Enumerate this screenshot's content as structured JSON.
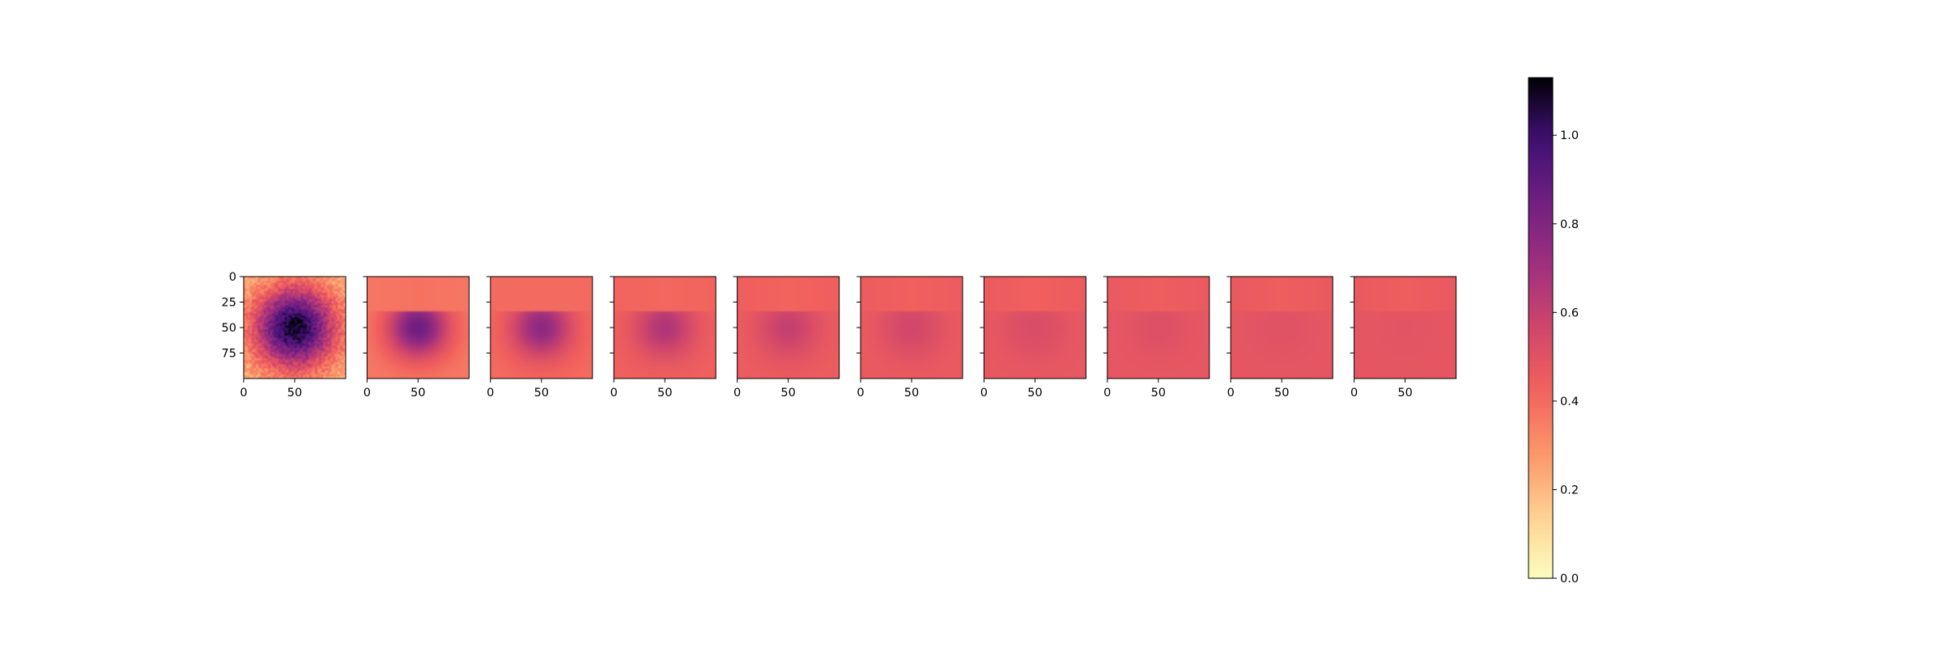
{
  "chart_data": {
    "type": "heatmap",
    "title": "",
    "colormap": "magma_r",
    "panels": [
      {
        "panel": 1,
        "center_value": 1.1,
        "edge_value": 0.18,
        "top_band_value": null,
        "noise": true
      },
      {
        "panel": 2,
        "center_value": 0.86,
        "edge_value": 0.36,
        "top_band_value": 0.38,
        "noise": false
      },
      {
        "panel": 3,
        "center_value": 0.76,
        "edge_value": 0.4,
        "top_band_value": 0.4,
        "noise": false
      },
      {
        "panel": 4,
        "center_value": 0.66,
        "edge_value": 0.43,
        "top_band_value": 0.41,
        "noise": false
      },
      {
        "panel": 5,
        "center_value": 0.6,
        "edge_value": 0.45,
        "top_band_value": 0.42,
        "noise": false
      },
      {
        "panel": 6,
        "center_value": 0.56,
        "edge_value": 0.46,
        "top_band_value": 0.43,
        "noise": false
      },
      {
        "panel": 7,
        "center_value": 0.53,
        "edge_value": 0.47,
        "top_band_value": 0.43,
        "noise": false
      },
      {
        "panel": 8,
        "center_value": 0.51,
        "edge_value": 0.475,
        "top_band_value": 0.44,
        "noise": false
      },
      {
        "panel": 9,
        "center_value": 0.5,
        "edge_value": 0.48,
        "top_band_value": 0.44,
        "noise": false
      },
      {
        "panel": 10,
        "center_value": 0.49,
        "edge_value": 0.48,
        "top_band_value": 0.44,
        "noise": false
      }
    ],
    "grid_size": 100,
    "x_range": [
      0,
      100
    ],
    "y_range": [
      0,
      100
    ],
    "y_inverted": true,
    "top_band_rows": [
      0,
      35
    ],
    "x_ticks": [
      0,
      50
    ],
    "x_tick_labels": [
      "0",
      "50"
    ],
    "y_ticks": [
      0,
      25,
      50,
      75
    ],
    "y_tick_labels": [
      "0",
      "25",
      "50",
      "75"
    ],
    "y_tick_labels_only_first_panel": true,
    "colorbar": {
      "vmin": 0.0,
      "vmax": 1.13,
      "ticks": [
        0.0,
        0.2,
        0.4,
        0.6,
        0.8,
        1.0
      ],
      "tick_labels": [
        "0.0",
        "0.2",
        "0.4",
        "0.6",
        "0.8",
        "1.0"
      ],
      "placement": "right"
    },
    "grid": false,
    "legend": "none"
  }
}
